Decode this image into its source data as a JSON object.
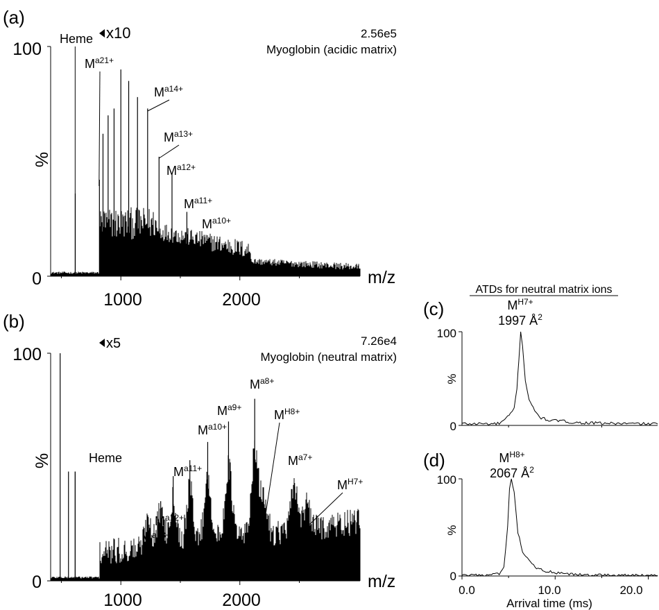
{
  "figure": {
    "panel_a_label": "(a)",
    "panel_b_label": "(b)",
    "panel_c_label": "(c)",
    "panel_d_label": "(d)",
    "atd_header": "ATDs for neutral matrix ions"
  },
  "chart_data": [
    {
      "id": "a",
      "type": "line",
      "title": "Myoglobin (acidic matrix)",
      "intensity_label": "2.56e5",
      "xlabel": "m/z",
      "ylabel": "%",
      "xlim": [
        410,
        3010
      ],
      "ylim": [
        0,
        100
      ],
      "xticks": [
        1000,
        2000
      ],
      "yticks": [
        0,
        100
      ],
      "magnification": {
        "label": "x10",
        "from_mz": 820
      },
      "heme": {
        "label": "Heme",
        "mz": 616,
        "value": 100
      },
      "peaks": [
        {
          "mz": 617,
          "value": 36
        },
        {
          "mz": 820,
          "value": 42
        },
        {
          "mz": 850,
          "value": 62
        },
        {
          "mz": 893,
          "value": 70
        },
        {
          "mz": 943,
          "value": 73
        },
        {
          "mz": 1000,
          "value": 90
        },
        {
          "mz": 1066,
          "value": 85
        },
        {
          "mz": 1140,
          "value": 78
        },
        {
          "mz": 1225,
          "value": 73
        },
        {
          "mz": 1321,
          "value": 52
        },
        {
          "mz": 1430,
          "value": 45
        },
        {
          "mz": 1555,
          "value": 28
        },
        {
          "mz": 1700,
          "value": 18
        }
      ],
      "annotations": [
        {
          "base": "M",
          "sup": "a21+",
          "mz": 817
        },
        {
          "base": "M",
          "sup": "a14+",
          "mz": 1225
        },
        {
          "base": "M",
          "sup": "a13+",
          "mz": 1321
        },
        {
          "base": "M",
          "sup": "a12+",
          "mz": 1430
        },
        {
          "base": "M",
          "sup": "a11+",
          "mz": 1555
        },
        {
          "base": "M",
          "sup": "a10+",
          "mz": 1700
        }
      ]
    },
    {
      "id": "b",
      "type": "line",
      "title": "Myoglobin (neutral matrix)",
      "intensity_label": "7.26e4",
      "xlabel": "m/z",
      "ylabel": "%",
      "xlim": [
        410,
        3010
      ],
      "ylim": [
        0,
        100
      ],
      "xticks": [
        1000,
        2000
      ],
      "yticks": [
        0,
        100
      ],
      "magnification": {
        "label": "x5",
        "from_mz": 820
      },
      "heme": {
        "label": "Heme",
        "mz": 616,
        "value": 48
      },
      "peaks": [
        {
          "mz": 490,
          "value": 100
        },
        {
          "mz": 560,
          "value": 48
        },
        {
          "mz": 616,
          "value": 48
        },
        {
          "mz": 1230,
          "value": 28
        },
        {
          "mz": 1335,
          "value": 35
        },
        {
          "mz": 1440,
          "value": 46
        },
        {
          "mz": 1580,
          "value": 53
        },
        {
          "mz": 1730,
          "value": 61
        },
        {
          "mz": 1905,
          "value": 70
        },
        {
          "mz": 2125,
          "value": 80
        },
        {
          "mz": 2200,
          "value": 35
        },
        {
          "mz": 2460,
          "value": 43
        },
        {
          "mz": 2560,
          "value": 22
        }
      ],
      "annotations": [
        {
          "base": "M",
          "sup": "a13+",
          "mz": 1335
        },
        {
          "base": "M",
          "sup": "a12+",
          "mz": 1440
        },
        {
          "base": "M",
          "sup": "a11+",
          "mz": 1580
        },
        {
          "base": "M",
          "sup": "a10+",
          "mz": 1730
        },
        {
          "base": "M",
          "sup": "a9+",
          "mz": 1905
        },
        {
          "base": "M",
          "sup": "a8+",
          "mz": 2125
        },
        {
          "base": "M",
          "sup": "H8+",
          "mz": 2200
        },
        {
          "base": "M",
          "sup": "a7+",
          "mz": 2460
        },
        {
          "base": "M",
          "sup": "H7+",
          "mz": 2560
        }
      ]
    },
    {
      "id": "c",
      "type": "line",
      "xlabel": "",
      "ylabel": "%",
      "xlim": [
        0,
        21
      ],
      "ylim": [
        0,
        100
      ],
      "yticks": [
        0,
        100
      ],
      "ion": {
        "base": "M",
        "sup": "H7+"
      },
      "ccs": {
        "value": "1997 Å",
        "sup": "2"
      },
      "points": [
        [
          0,
          2
        ],
        [
          1,
          1.5
        ],
        [
          2,
          2
        ],
        [
          3,
          1.5
        ],
        [
          4,
          2
        ],
        [
          4.6,
          6
        ],
        [
          5.2,
          12
        ],
        [
          5.6,
          18
        ],
        [
          5.9,
          40
        ],
        [
          6.1,
          70
        ],
        [
          6.3,
          100
        ],
        [
          6.5,
          85
        ],
        [
          6.8,
          48
        ],
        [
          7.2,
          28
        ],
        [
          7.8,
          15
        ],
        [
          8.5,
          8
        ],
        [
          9.5,
          5
        ],
        [
          10.5,
          5
        ],
        [
          12,
          3
        ],
        [
          14,
          2.5
        ],
        [
          17,
          2
        ],
        [
          21,
          1.5
        ]
      ]
    },
    {
      "id": "d",
      "type": "line",
      "xlabel": "Arrival time (ms)",
      "ylabel": "%",
      "xlim": [
        0,
        21
      ],
      "ylim": [
        0,
        100
      ],
      "xticks": [
        0,
        10,
        20
      ],
      "xtick_labels": [
        "0.0",
        "10.0",
        "20.0"
      ],
      "yticks": [
        0,
        100
      ],
      "ion": {
        "base": "M",
        "sup": "H8+"
      },
      "ccs": {
        "value": "2067 Å",
        "sup": "2"
      },
      "points": [
        [
          0,
          0.5
        ],
        [
          2,
          0.5
        ],
        [
          3,
          1
        ],
        [
          4,
          2
        ],
        [
          4.5,
          8
        ],
        [
          4.9,
          50
        ],
        [
          5.1,
          90
        ],
        [
          5.3,
          100
        ],
        [
          5.6,
          85
        ],
        [
          6,
          45
        ],
        [
          6.5,
          25
        ],
        [
          7.2,
          15
        ],
        [
          8,
          8
        ],
        [
          9,
          5
        ],
        [
          10,
          3
        ],
        [
          11,
          2
        ],
        [
          13,
          1
        ],
        [
          16,
          0.8
        ],
        [
          21,
          0.5
        ]
      ]
    }
  ]
}
